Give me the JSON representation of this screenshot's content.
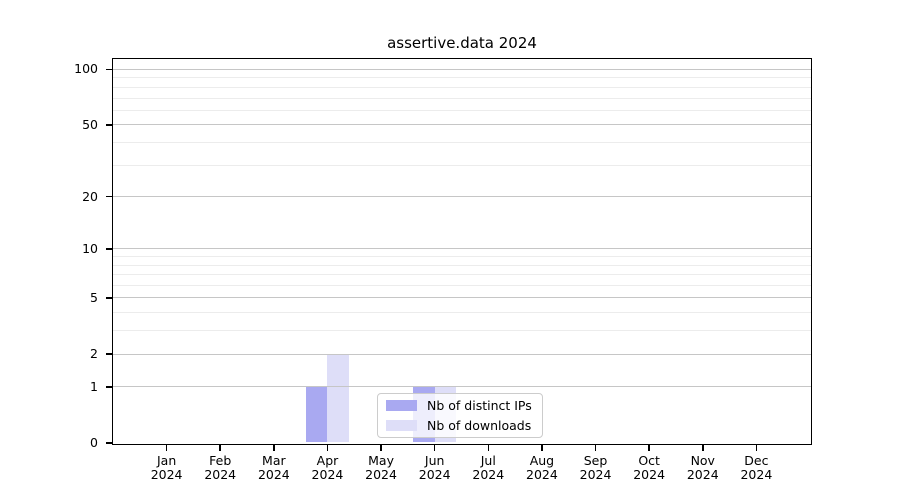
{
  "title": "assertive.data 2024",
  "legend": {
    "items": [
      {
        "label": "Nb of distinct IPs",
        "color": "#a9a9f1"
      },
      {
        "label": "Nb of downloads",
        "color": "#dedef8"
      }
    ]
  },
  "colors": {
    "bar_distinct_ips": "#a9a9f1",
    "bar_downloads": "#dedef8",
    "grid_major": "#c6c6c6",
    "grid_minor": "#ececec",
    "spine": "#000000",
    "legend_border": "#cccccc"
  },
  "chart_data": {
    "type": "bar",
    "title": "assertive.data 2024",
    "categories": [
      "Jan 2024",
      "Feb 2024",
      "Mar 2024",
      "Apr 2024",
      "May 2024",
      "Jun 2024",
      "Jul 2024",
      "Aug 2024",
      "Sep 2024",
      "Oct 2024",
      "Nov 2024",
      "Dec 2024"
    ],
    "series": [
      {
        "name": "Nb of distinct IPs",
        "color": "#a9a9f1",
        "values": [
          0,
          0,
          0,
          1,
          0,
          1,
          0,
          0,
          0,
          0,
          0,
          0
        ]
      },
      {
        "name": "Nb of downloads",
        "color": "#dedef8",
        "values": [
          0,
          0,
          0,
          2,
          0,
          1,
          0,
          0,
          0,
          0,
          0,
          0
        ]
      }
    ],
    "xlabel": "",
    "ylabel": "",
    "y_scale": "log1p",
    "ylim": [
      0,
      114
    ],
    "y_ticks": [
      0,
      1,
      2,
      5,
      10,
      20,
      50,
      100
    ],
    "y_minor_gridlines": [
      3,
      4,
      6,
      7,
      8,
      9,
      30,
      40,
      60,
      70,
      80,
      90
    ],
    "grid": true,
    "legend_position": "lower center"
  }
}
